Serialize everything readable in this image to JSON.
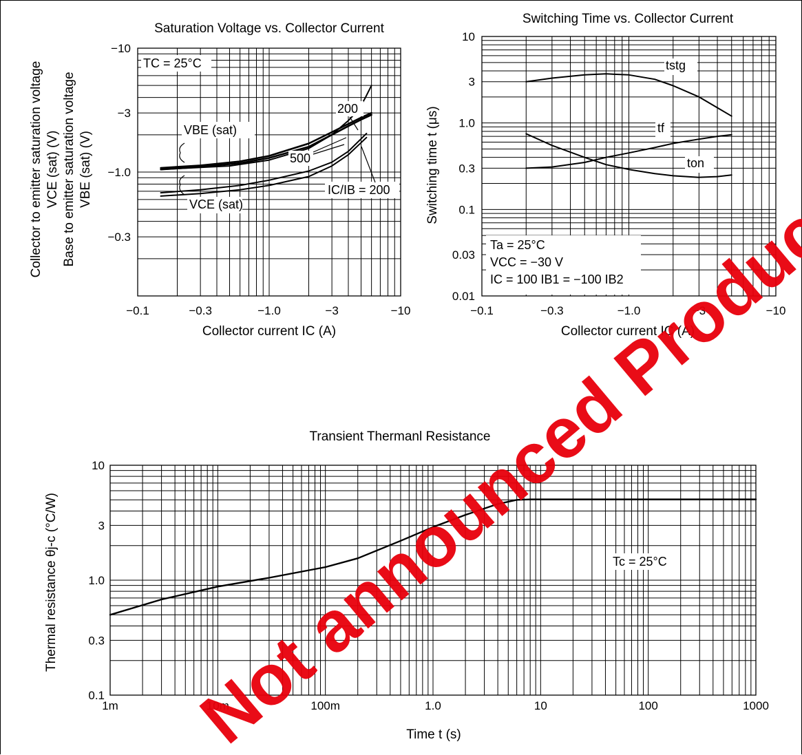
{
  "watermark": "Not announced Product",
  "chart_data": [
    {
      "id": "sat",
      "type": "line",
      "title": "Saturation Voltage vs. Collector Current",
      "xlabel": "Collector current  IC  (A)",
      "ylabel_1": "Collector to emitter saturation voltage",
      "ylabel_2": "VCE (sat)   (V)",
      "ylabel_3": "Base to emitter saturation voltage",
      "ylabel_4": "VBE (sat)   (V)",
      "x_scale": "log",
      "y_scale": "log",
      "xlim": [
        -0.1,
        -10
      ],
      "ylim": [
        -0.1,
        -10
      ],
      "x_ticks": [
        "−0.1",
        "−0.3",
        "−1.0",
        "−3",
        "−10"
      ],
      "y_ticks": [
        "−0.3",
        "−1.0",
        "−3",
        "−10"
      ],
      "grid": true,
      "annotations": {
        "tc": "TC = 25°C",
        "vbe": "VBE (sat)",
        "vce": "VCE (sat)",
        "l200": "200",
        "l500": "500",
        "icib": "IC/IB = 200"
      },
      "series": [
        {
          "name": "VBE (sat) 500",
          "x": [
            -0.15,
            -0.3,
            -0.6,
            -1.0,
            -2.0,
            -3.0,
            -4.0,
            -5.5
          ],
          "y": [
            -0.64,
            -0.67,
            -0.72,
            -0.78,
            -0.92,
            -1.12,
            -1.38,
            -1.9
          ]
        },
        {
          "name": "VBE (sat) 200",
          "x": [
            -0.15,
            -0.3,
            -0.6,
            -1.0,
            -2.0,
            -3.0,
            -4.0,
            -5.5
          ],
          "y": [
            -0.68,
            -0.72,
            -0.78,
            -0.86,
            -1.02,
            -1.2,
            -1.47,
            -2.05
          ]
        },
        {
          "name": "VCE (sat) 200",
          "x": [
            -0.15,
            -0.3,
            -0.6,
            -1.0,
            -2.0,
            -3.0,
            -4.0,
            -5.0,
            -6.0
          ],
          "y": [
            -1.05,
            -1.1,
            -1.18,
            -1.3,
            -1.6,
            -2.0,
            -2.35,
            -2.65,
            -2.9
          ]
        },
        {
          "name": "VCE (sat) 500",
          "x": [
            -0.15,
            -0.3,
            -0.6,
            -1.0,
            -2.0,
            -3.0,
            -4.0,
            -5.0,
            -6.0
          ],
          "y": [
            -1.08,
            -1.13,
            -1.22,
            -1.35,
            -1.7,
            -2.1,
            -2.45,
            -2.75,
            -3.0
          ]
        },
        {
          "name": "IC/IB = 200 (steep)",
          "x": [
            -0.15,
            -0.5,
            -1.0,
            -2.0,
            -3.0,
            -4.0,
            -4.8,
            -5.4,
            -6.0
          ],
          "y": [
            -1.05,
            -1.12,
            -1.25,
            -1.55,
            -2.0,
            -2.6,
            -3.2,
            -4.0,
            -5.0
          ]
        }
      ]
    },
    {
      "id": "sw",
      "type": "line",
      "title": "Switching Time vs. Collector Current",
      "xlabel": "Collector current  IC  (A)",
      "ylabel": "Switching time  t  (μs)",
      "x_scale": "log",
      "y_scale": "log",
      "xlim": [
        -0.1,
        -10
      ],
      "ylim": [
        0.01,
        10
      ],
      "x_ticks": [
        "−0.1",
        "−0.3",
        "−1.0",
        "−3",
        "−10"
      ],
      "y_ticks": [
        "0.01",
        "0.03",
        "0.1",
        "0.3",
        "1.0",
        "3",
        "10"
      ],
      "grid": true,
      "annotations": {
        "tstg": "tstg",
        "tf": "tf",
        "ton": "ton",
        "ta": "Ta = 25°C",
        "vcc": "VCC = −30 V",
        "ic": "IC = 100 IB1 = −100 IB2"
      },
      "series": [
        {
          "name": "tstg",
          "x": [
            -0.2,
            -0.3,
            -0.5,
            -0.7,
            -1.0,
            -1.5,
            -2.0,
            -3.0,
            -4.0,
            -5.0
          ],
          "y": [
            3.0,
            3.3,
            3.6,
            3.7,
            3.6,
            3.2,
            2.7,
            2.0,
            1.5,
            1.2
          ]
        },
        {
          "name": "tf",
          "x": [
            -0.2,
            -0.3,
            -0.5,
            -0.7,
            -1.0,
            -1.5,
            -2.0,
            -3.0,
            -4.0,
            -5.0
          ],
          "y": [
            0.3,
            0.31,
            0.35,
            0.4,
            0.45,
            0.52,
            0.58,
            0.65,
            0.7,
            0.73
          ]
        },
        {
          "name": "ton",
          "x": [
            -0.2,
            -0.3,
            -0.5,
            -0.7,
            -1.0,
            -1.5,
            -2.0,
            -3.0,
            -4.0,
            -5.0
          ],
          "y": [
            0.75,
            0.55,
            0.4,
            0.33,
            0.29,
            0.26,
            0.245,
            0.235,
            0.24,
            0.25
          ]
        }
      ]
    },
    {
      "id": "therm",
      "type": "line",
      "title": "Transient Thermanl Resistance",
      "xlabel": "Time    t (s)",
      "ylabel": "Thermal resistance  θj-c  (°C/W)",
      "x_scale": "log",
      "y_scale": "log",
      "xlim": [
        0.001,
        1000
      ],
      "ylim": [
        0.1,
        10
      ],
      "x_ticks": [
        "1m",
        "10m",
        "100m",
        "1.0",
        "10",
        "100",
        "1000"
      ],
      "y_ticks": [
        "0.1",
        "0.3",
        "1.0",
        "3",
        "10"
      ],
      "grid": true,
      "annotations": {
        "tc": "Tc = 25°C"
      },
      "series": [
        {
          "name": "θj-c",
          "x": [
            0.001,
            0.003,
            0.01,
            0.03,
            0.1,
            0.2,
            0.5,
            1.0,
            2.0,
            4.0,
            6.0,
            8.0,
            20,
            100,
            1000
          ],
          "y": [
            0.5,
            0.68,
            0.88,
            1.05,
            1.3,
            1.55,
            2.2,
            2.9,
            3.7,
            4.6,
            5.0,
            5.05,
            5.05,
            5.05,
            5.05
          ]
        }
      ]
    }
  ]
}
